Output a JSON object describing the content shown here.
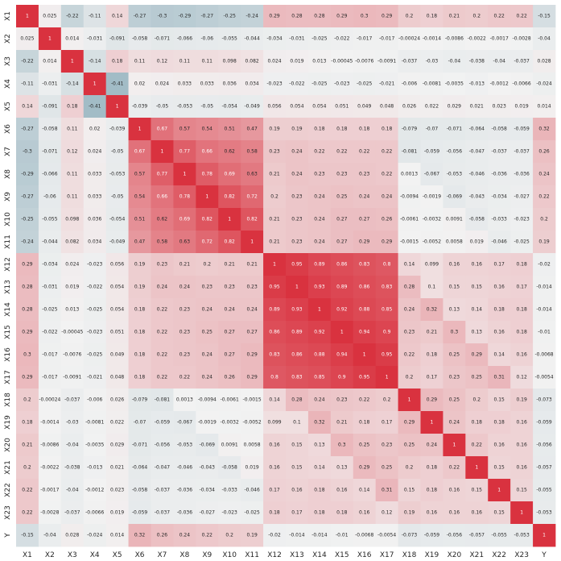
{
  "chart_data": {
    "type": "heatmap",
    "title": "",
    "xlabel": "",
    "ylabel": "",
    "grid": false,
    "legend": "none",
    "colormap": {
      "negative": "#2f6e86",
      "zero": "#f2f2f2",
      "positive": "#d9323f"
    },
    "value_range": [
      -1,
      1
    ],
    "labels": [
      "X1",
      "X2",
      "X3",
      "X4",
      "X5",
      "X6",
      "X7",
      "X8",
      "X9",
      "X10",
      "X11",
      "X12",
      "X13",
      "X14",
      "X15",
      "X16",
      "X17",
      "X18",
      "X19",
      "X20",
      "X21",
      "X22",
      "X23",
      "Y"
    ],
    "display": [
      [
        "1",
        "0.025",
        "-0.22",
        "-0.11",
        "0.14",
        "-0.27",
        "-0.3",
        "-0.29",
        "-0.27",
        "-0.25",
        "-0.24",
        "0.29",
        "0.28",
        "0.28",
        "0.29",
        "0.3",
        "0.29",
        "0.2",
        "0.18",
        "0.21",
        "0.2",
        "0.22",
        "0.22",
        "-0.15"
      ],
      [
        "0.025",
        "1",
        "0.014",
        "-0.031",
        "-0.091",
        "-0.058",
        "-0.071",
        "-0.066",
        "-0.06",
        "-0.055",
        "-0.044",
        "-0.034",
        "-0.031",
        "-0.025",
        "-0.022",
        "-0.017",
        "-0.017",
        "-0.00024",
        "-0.0014",
        "-0.0086",
        "-0.0022",
        "-0.0017",
        "-0.0028",
        "-0.04"
      ],
      [
        "-0.22",
        "0.014",
        "1",
        "-0.14",
        "0.18",
        "0.11",
        "0.12",
        "0.11",
        "0.11",
        "0.098",
        "0.082",
        "0.024",
        "0.019",
        "0.013",
        "-0.00045",
        "-0.0076",
        "-0.0091",
        "-0.037",
        "-0.03",
        "-0.04",
        "-0.038",
        "-0.04",
        "-0.037",
        "0.028"
      ],
      [
        "-0.11",
        "-0.031",
        "-0.14",
        "1",
        "-0.41",
        "0.02",
        "0.024",
        "0.033",
        "0.033",
        "0.036",
        "0.034",
        "-0.023",
        "-0.022",
        "-0.025",
        "-0.023",
        "-0.025",
        "-0.021",
        "-0.006",
        "-0.0081",
        "-0.0035",
        "-0.013",
        "-0.0012",
        "-0.0066",
        "-0.024"
      ],
      [
        "0.14",
        "-0.091",
        "0.18",
        "-0.41",
        "1",
        "-0.039",
        "-0.05",
        "-0.053",
        "-0.05",
        "-0.054",
        "-0.049",
        "0.056",
        "0.054",
        "0.054",
        "0.051",
        "0.049",
        "0.048",
        "0.026",
        "0.022",
        "0.029",
        "0.021",
        "0.023",
        "0.019",
        "0.014"
      ],
      [
        "-0.27",
        "-0.058",
        "0.11",
        "0.02",
        "-0.039",
        "1",
        "0.67",
        "0.57",
        "0.54",
        "0.51",
        "0.47",
        "0.19",
        "0.19",
        "0.18",
        "0.18",
        "0.18",
        "0.18",
        "-0.079",
        "-0.07",
        "-0.071",
        "-0.064",
        "-0.058",
        "-0.059",
        "0.32"
      ],
      [
        "-0.3",
        "-0.071",
        "0.12",
        "0.024",
        "-0.05",
        "0.67",
        "1",
        "0.77",
        "0.66",
        "0.62",
        "0.58",
        "0.23",
        "0.24",
        "0.22",
        "0.22",
        "0.22",
        "0.22",
        "-0.081",
        "-0.059",
        "-0.056",
        "-0.047",
        "-0.037",
        "-0.037",
        "0.26"
      ],
      [
        "-0.29",
        "-0.066",
        "0.11",
        "0.033",
        "-0.053",
        "0.57",
        "0.77",
        "1",
        "0.78",
        "0.69",
        "0.63",
        "0.21",
        "0.24",
        "0.23",
        "0.23",
        "0.23",
        "0.22",
        "0.0013",
        "-0.067",
        "-0.053",
        "-0.046",
        "-0.036",
        "-0.036",
        "0.24"
      ],
      [
        "-0.27",
        "-0.06",
        "0.11",
        "0.033",
        "-0.05",
        "0.54",
        "0.66",
        "0.78",
        "1",
        "0.82",
        "0.72",
        "0.2",
        "0.23",
        "0.24",
        "0.25",
        "0.24",
        "0.24",
        "-0.0094",
        "-0.0019",
        "-0.069",
        "-0.043",
        "-0.034",
        "-0.027",
        "0.22"
      ],
      [
        "-0.25",
        "-0.055",
        "0.098",
        "0.036",
        "-0.054",
        "0.51",
        "0.62",
        "0.69",
        "0.82",
        "1",
        "0.82",
        "0.21",
        "0.23",
        "0.24",
        "0.27",
        "0.27",
        "0.26",
        "-0.0061",
        "-0.0032",
        "0.0091",
        "-0.058",
        "-0.033",
        "-0.023",
        "0.2"
      ],
      [
        "-0.24",
        "-0.044",
        "0.082",
        "0.034",
        "-0.049",
        "0.47",
        "0.58",
        "0.63",
        "0.72",
        "0.82",
        "1",
        "0.21",
        "0.23",
        "0.24",
        "0.27",
        "0.29",
        "0.29",
        "-0.0015",
        "-0.0052",
        "0.0058",
        "0.019",
        "-0.046",
        "-0.025",
        "0.19"
      ],
      [
        "0.29",
        "-0.034",
        "0.024",
        "-0.023",
        "0.056",
        "0.19",
        "0.23",
        "0.21",
        "0.2",
        "0.21",
        "0.21",
        "1",
        "0.95",
        "0.89",
        "0.86",
        "0.83",
        "0.8",
        "0.14",
        "0.099",
        "0.16",
        "0.16",
        "0.17",
        "0.18",
        "-0.02"
      ],
      [
        "0.28",
        "-0.031",
        "0.019",
        "-0.022",
        "0.054",
        "0.19",
        "0.24",
        "0.24",
        "0.23",
        "0.23",
        "0.23",
        "0.95",
        "1",
        "0.93",
        "0.89",
        "0.86",
        "0.83",
        "0.28",
        "0.1",
        "0.15",
        "0.15",
        "0.16",
        "0.17",
        "-0.014"
      ],
      [
        "0.28",
        "-0.025",
        "0.013",
        "-0.025",
        "0.054",
        "0.18",
        "0.22",
        "0.23",
        "0.24",
        "0.24",
        "0.24",
        "0.89",
        "0.93",
        "1",
        "0.92",
        "0.88",
        "0.85",
        "0.24",
        "0.32",
        "0.13",
        "0.14",
        "0.18",
        "0.18",
        "-0.014"
      ],
      [
        "0.29",
        "-0.022",
        "-0.00045",
        "-0.023",
        "0.051",
        "0.18",
        "0.22",
        "0.23",
        "0.25",
        "0.27",
        "0.27",
        "0.86",
        "0.89",
        "0.92",
        "1",
        "0.94",
        "0.9",
        "0.23",
        "0.21",
        "0.3",
        "0.13",
        "0.16",
        "0.18",
        "-0.01"
      ],
      [
        "0.3",
        "-0.017",
        "-0.0076",
        "-0.025",
        "0.049",
        "0.18",
        "0.22",
        "0.23",
        "0.24",
        "0.27",
        "0.29",
        "0.83",
        "0.86",
        "0.88",
        "0.94",
        "1",
        "0.95",
        "0.22",
        "0.18",
        "0.25",
        "0.29",
        "0.14",
        "0.16",
        "-0.0068"
      ],
      [
        "0.29",
        "-0.017",
        "-0.0091",
        "-0.021",
        "0.048",
        "0.18",
        "0.22",
        "0.22",
        "0.24",
        "0.26",
        "0.29",
        "0.8",
        "0.83",
        "0.85",
        "0.9",
        "0.95",
        "1",
        "0.2",
        "0.17",
        "0.23",
        "0.25",
        "0.31",
        "0.12",
        "-0.0054"
      ],
      [
        "0.2",
        "-0.00024",
        "-0.037",
        "-0.006",
        "0.026",
        "-0.079",
        "-0.081",
        "0.0013",
        "-0.0094",
        "-0.0061",
        "-0.0015",
        "0.14",
        "0.28",
        "0.24",
        "0.23",
        "0.22",
        "0.2",
        "1",
        "0.29",
        "0.25",
        "0.2",
        "0.15",
        "0.19",
        "-0.073"
      ],
      [
        "0.18",
        "-0.0014",
        "-0.03",
        "-0.0081",
        "0.022",
        "-0.07",
        "-0.059",
        "-0.067",
        "-0.0019",
        "-0.0032",
        "-0.0052",
        "0.099",
        "0.1",
        "0.32",
        "0.21",
        "0.18",
        "0.17",
        "0.29",
        "1",
        "0.24",
        "0.18",
        "0.18",
        "0.16",
        "-0.059"
      ],
      [
        "0.21",
        "-0.0086",
        "-0.04",
        "-0.0035",
        "0.029",
        "-0.071",
        "-0.056",
        "-0.053",
        "-0.069",
        "0.0091",
        "0.0058",
        "0.16",
        "0.15",
        "0.13",
        "0.3",
        "0.25",
        "0.23",
        "0.25",
        "0.24",
        "1",
        "0.22",
        "0.16",
        "0.16",
        "-0.056"
      ],
      [
        "0.2",
        "-0.0022",
        "-0.038",
        "-0.013",
        "0.021",
        "-0.064",
        "-0.047",
        "-0.046",
        "-0.043",
        "-0.058",
        "0.019",
        "0.16",
        "0.15",
        "0.14",
        "0.13",
        "0.29",
        "0.25",
        "0.2",
        "0.18",
        "0.22",
        "1",
        "0.15",
        "0.16",
        "-0.057"
      ],
      [
        "0.22",
        "-0.0017",
        "-0.04",
        "-0.0012",
        "0.023",
        "-0.058",
        "-0.037",
        "-0.036",
        "-0.034",
        "-0.033",
        "-0.046",
        "0.17",
        "0.16",
        "0.18",
        "0.16",
        "0.14",
        "0.31",
        "0.15",
        "0.18",
        "0.16",
        "0.15",
        "1",
        "0.15",
        "-0.055"
      ],
      [
        "0.22",
        "-0.0028",
        "-0.037",
        "-0.0066",
        "0.019",
        "-0.059",
        "-0.037",
        "-0.036",
        "-0.027",
        "-0.023",
        "-0.025",
        "0.18",
        "0.17",
        "0.18",
        "0.18",
        "0.16",
        "0.12",
        "0.19",
        "0.16",
        "0.16",
        "0.16",
        "0.15",
        "1",
        "-0.053"
      ],
      [
        "-0.15",
        "-0.04",
        "0.028",
        "-0.024",
        "0.014",
        "0.32",
        "0.26",
        "0.24",
        "0.22",
        "0.2",
        "0.19",
        "-0.02",
        "-0.014",
        "-0.014",
        "-0.01",
        "-0.0068",
        "-0.0054",
        "-0.073",
        "-0.059",
        "-0.056",
        "-0.057",
        "-0.055",
        "-0.053",
        "1"
      ]
    ]
  }
}
